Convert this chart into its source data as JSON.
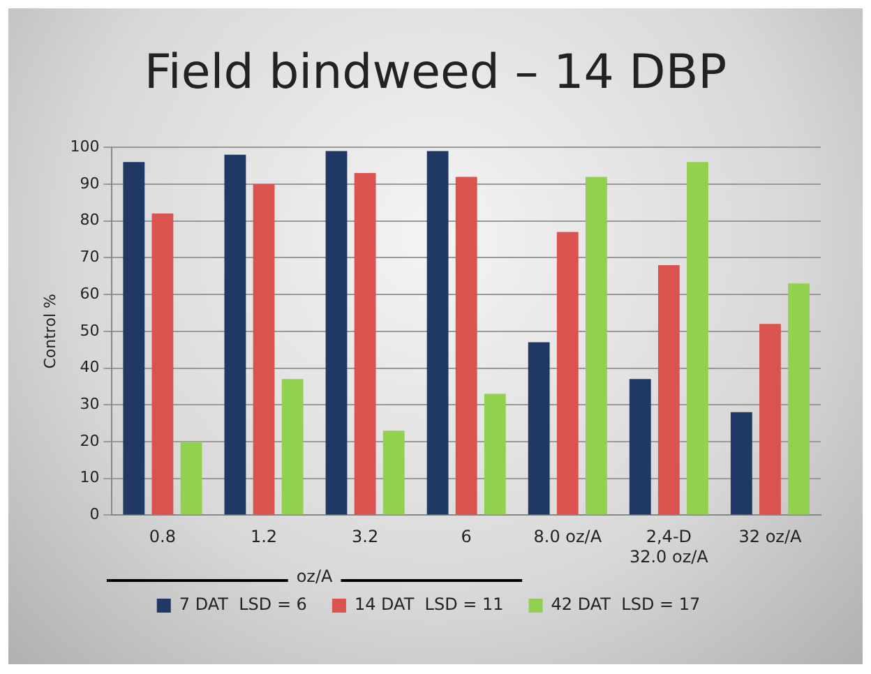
{
  "chart_data": {
    "type": "bar",
    "title": "Field bindweed – 14 DBP",
    "ylabel": "Control %",
    "categories": [
      "0.8",
      "1.2",
      "3.2",
      "6",
      "8.0 oz/A",
      "2,4-D 32.0 oz/A",
      "32 oz/A"
    ],
    "series": [
      {
        "name": "7 DAT  LSD = 6",
        "color": "#1f3864",
        "values": [
          96,
          98,
          99,
          99,
          47,
          37,
          28
        ]
      },
      {
        "name": "14 DAT  LSD = 11",
        "color": "#d9534f",
        "values": [
          82,
          90,
          93,
          92,
          77,
          68,
          52
        ]
      },
      {
        "name": "42 DAT  LSD = 17",
        "color": "#92d050",
        "values": [
          20,
          37,
          23,
          33,
          92,
          96,
          63
        ]
      }
    ],
    "annotations": [
      "oz/A"
    ],
    "ylim": [
      0,
      100
    ],
    "yticks": [
      0,
      10,
      20,
      30,
      40,
      50,
      60,
      70,
      80,
      90,
      100
    ],
    "grid": "y",
    "legend": "bottom"
  }
}
